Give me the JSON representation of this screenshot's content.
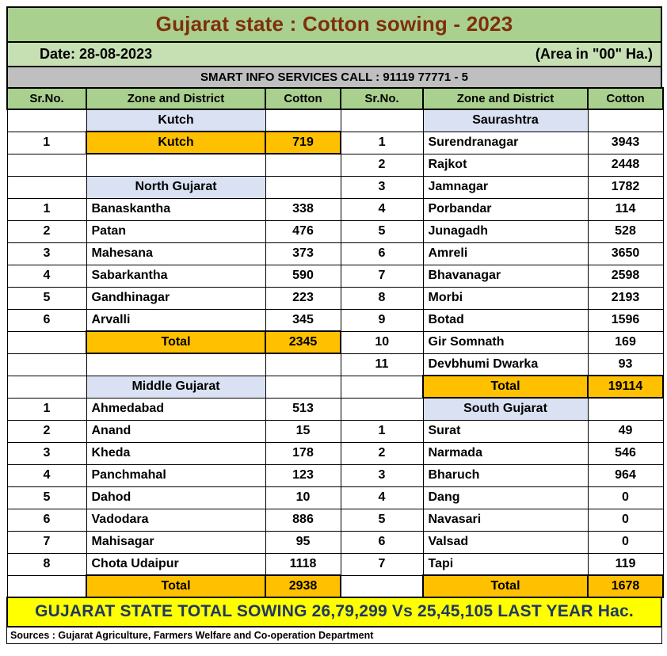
{
  "title": "Gujarat state : Cotton sowing - 2023",
  "date_label": "Date: 28-08-2023",
  "area_label": "(Area in \"00\" Ha.)",
  "info_banner": "SMART INFO SERVICES CALL : 91119 77771 - 5",
  "columns": {
    "sr": "Sr.No.",
    "zone": "Zone and District",
    "cotton": "Cotton"
  },
  "colors": {
    "title_bg": "#a9d08e",
    "title_text": "#7e2f0c",
    "date_bg": "#c6e0b4",
    "banner_bg": "#bfbfbf",
    "header_bg": "#a9d08e",
    "zone_bg": "#d9e1f2",
    "highlight_bg": "#ffc000",
    "footer_bg": "#ffff00",
    "footer_text": "#1f3864"
  },
  "left_rows": [
    {
      "type": "zone",
      "district": "Kutch"
    },
    {
      "type": "data",
      "sr": "1",
      "district": "Kutch",
      "cotton": "719",
      "highlight": true
    },
    {
      "type": "blank"
    },
    {
      "type": "zone",
      "district": "North Gujarat"
    },
    {
      "type": "data",
      "sr": "1",
      "district": "Banaskantha",
      "cotton": "338"
    },
    {
      "type": "data",
      "sr": "2",
      "district": "Patan",
      "cotton": "476"
    },
    {
      "type": "data",
      "sr": "3",
      "district": "Mahesana",
      "cotton": "373"
    },
    {
      "type": "data",
      "sr": "4",
      "district": "Sabarkantha",
      "cotton": "590"
    },
    {
      "type": "data",
      "sr": "5",
      "district": "Gandhinagar",
      "cotton": "223"
    },
    {
      "type": "data",
      "sr": "6",
      "district": "Arvalli",
      "cotton": "345"
    },
    {
      "type": "total",
      "district": "Total",
      "cotton": "2345"
    },
    {
      "type": "blank"
    },
    {
      "type": "zone",
      "district": "Middle Gujarat"
    },
    {
      "type": "data",
      "sr": "1",
      "district": "Ahmedabad",
      "cotton": "513"
    },
    {
      "type": "data",
      "sr": "2",
      "district": "Anand",
      "cotton": "15"
    },
    {
      "type": "data",
      "sr": "3",
      "district": "Kheda",
      "cotton": "178"
    },
    {
      "type": "data",
      "sr": "4",
      "district": "Panchmahal",
      "cotton": "123"
    },
    {
      "type": "data",
      "sr": "5",
      "district": "Dahod",
      "cotton": "10"
    },
    {
      "type": "data",
      "sr": "6",
      "district": "Vadodara",
      "cotton": "886"
    },
    {
      "type": "data",
      "sr": "7",
      "district": "Mahisagar",
      "cotton": "95"
    },
    {
      "type": "data",
      "sr": "8",
      "district": "Chota Udaipur",
      "cotton": "1118"
    },
    {
      "type": "total",
      "district": "Total",
      "cotton": "2938"
    }
  ],
  "right_rows": [
    {
      "type": "zone",
      "district": "Saurashtra"
    },
    {
      "type": "data",
      "sr": "1",
      "district": "Surendranagar",
      "cotton": "3943"
    },
    {
      "type": "data",
      "sr": "2",
      "district": "Rajkot",
      "cotton": "2448"
    },
    {
      "type": "data",
      "sr": "3",
      "district": "Jamnagar",
      "cotton": "1782"
    },
    {
      "type": "data",
      "sr": "4",
      "district": "Porbandar",
      "cotton": "114"
    },
    {
      "type": "data",
      "sr": "5",
      "district": "Junagadh",
      "cotton": "528"
    },
    {
      "type": "data",
      "sr": "6",
      "district": "Amreli",
      "cotton": "3650"
    },
    {
      "type": "data",
      "sr": "7",
      "district": "Bhavanagar",
      "cotton": "2598"
    },
    {
      "type": "data",
      "sr": "8",
      "district": "Morbi",
      "cotton": "2193"
    },
    {
      "type": "data",
      "sr": "9",
      "district": "Botad",
      "cotton": "1596"
    },
    {
      "type": "data",
      "sr": "10",
      "district": "Gir Somnath",
      "cotton": "169"
    },
    {
      "type": "data",
      "sr": "11",
      "district": "Devbhumi Dwarka",
      "cotton": "93"
    },
    {
      "type": "total",
      "district": "Total",
      "cotton": "19114"
    },
    {
      "type": "zone",
      "district": "South Gujarat"
    },
    {
      "type": "data",
      "sr": "1",
      "district": "Surat",
      "cotton": "49"
    },
    {
      "type": "data",
      "sr": "2",
      "district": "Narmada",
      "cotton": "546"
    },
    {
      "type": "data",
      "sr": "3",
      "district": "Bharuch",
      "cotton": "964"
    },
    {
      "type": "data",
      "sr": "4",
      "district": "Dang",
      "cotton": "0"
    },
    {
      "type": "data",
      "sr": "5",
      "district": "Navasari",
      "cotton": "0"
    },
    {
      "type": "data",
      "sr": "6",
      "district": "Valsad",
      "cotton": "0"
    },
    {
      "type": "data",
      "sr": "7",
      "district": "Tapi",
      "cotton": "119"
    },
    {
      "type": "total",
      "district": "Total",
      "cotton": "1678"
    }
  ],
  "footer_total": "GUJARAT STATE TOTAL SOWING 26,79,299 Vs 25,45,105 LAST YEAR Hac.",
  "sources": "Sources : Gujarat Agriculture, Farmers Welfare and Co-operation Department"
}
